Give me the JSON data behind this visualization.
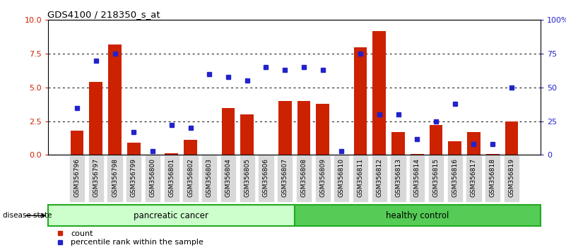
{
  "title": "GDS4100 / 218350_s_at",
  "samples": [
    "GSM356796",
    "GSM356797",
    "GSM356798",
    "GSM356799",
    "GSM356800",
    "GSM356801",
    "GSM356802",
    "GSM356803",
    "GSM356804",
    "GSM356805",
    "GSM356806",
    "GSM356807",
    "GSM356808",
    "GSM356809",
    "GSM356810",
    "GSM356811",
    "GSM356812",
    "GSM356813",
    "GSM356814",
    "GSM356815",
    "GSM356816",
    "GSM356817",
    "GSM356818",
    "GSM356819"
  ],
  "counts": [
    1.8,
    5.4,
    8.2,
    0.9,
    0.05,
    0.15,
    1.1,
    0.05,
    3.5,
    3.0,
    0.05,
    4.0,
    4.0,
    3.8,
    0.05,
    8.0,
    9.2,
    1.7,
    0.1,
    2.2,
    1.0,
    1.7,
    0.1,
    2.5
  ],
  "percentiles": [
    35,
    70,
    75,
    17,
    3,
    22,
    20,
    60,
    58,
    55,
    65,
    63,
    65,
    63,
    3,
    75,
    30,
    30,
    12,
    25,
    38,
    8,
    8,
    50
  ],
  "group1_count": 12,
  "group2_count": 12,
  "group1_label": "pancreatic cancer",
  "group2_label": "healthy control",
  "disease_state_label": "disease state",
  "bar_color": "#cc2200",
  "dot_color": "#2222cc",
  "group1_facecolor": "#ccffcc",
  "group2_facecolor": "#55cc55",
  "group_edgecolor": "#22aa22",
  "ylim_left": [
    0,
    10
  ],
  "ylim_right": [
    0,
    100
  ],
  "yticks_left": [
    0,
    2.5,
    5.0,
    7.5,
    10.0
  ],
  "yticks_right": [
    0,
    25,
    50,
    75,
    100
  ],
  "ytick_labels_right": [
    "0",
    "25",
    "50",
    "75",
    "100%"
  ],
  "legend_count_label": "count",
  "legend_pct_label": "percentile rank within the sample",
  "xticklabel_bg": "#d8d8d8",
  "fig_bg": "#ffffff"
}
